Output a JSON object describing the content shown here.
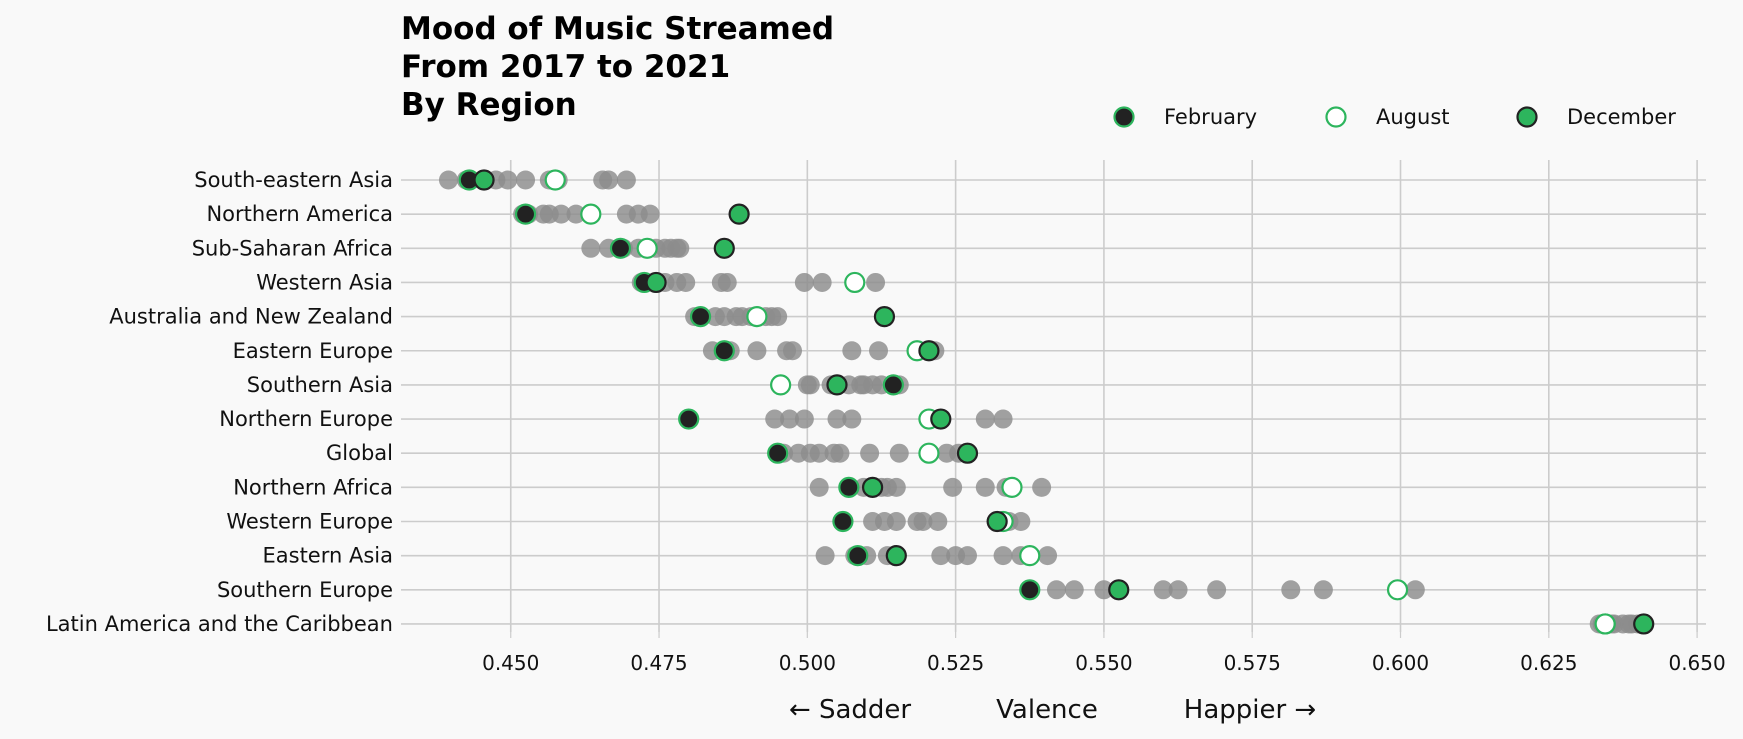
{
  "title": "Mood of Music Streamed\nFrom 2017 to 2021\nBy Region",
  "chart_data": {
    "type": "scatter",
    "title": "Mood of Music Streamed From 2017 to 2021 By Region",
    "xlabel": "Valence",
    "xlabel_left": "← Sadder",
    "xlabel_right": "Happier →",
    "xlim": [
      0.4315,
      0.6515
    ],
    "xticks": [
      0.45,
      0.475,
      0.5,
      0.525,
      0.55,
      0.575,
      0.6,
      0.625,
      0.65
    ],
    "xtick_labels": [
      "0.450",
      "0.475",
      "0.500",
      "0.525",
      "0.550",
      "0.575",
      "0.600",
      "0.625",
      "0.650"
    ],
    "grid": true,
    "legend_position": "top-right",
    "colors": {
      "accent": "#2db55d",
      "dark": "#222222",
      "other": "#8c8c8c",
      "background": "#f9f9f9"
    },
    "legend": [
      "February",
      "August",
      "December"
    ],
    "categories": [
      "South-eastern Asia",
      "Northern America",
      "Sub-Saharan Africa",
      "Western Asia",
      "Australia and New Zealand",
      "Eastern Europe",
      "Southern Asia",
      "Northern Europe",
      "Global",
      "Northern Africa",
      "Western Europe",
      "Eastern Asia",
      "Southern Europe",
      "Latin America and the Caribbean"
    ],
    "other_months": [
      [
        0.4395,
        0.4425,
        0.4455,
        0.4475,
        0.4495,
        0.4525,
        0.4565,
        0.458,
        0.4655,
        0.4665,
        0.4695
      ],
      [
        0.452,
        0.453,
        0.4555,
        0.4565,
        0.4585,
        0.461,
        0.4635,
        0.4695,
        0.4715,
        0.4735
      ],
      [
        0.4635,
        0.4665,
        0.469,
        0.4715,
        0.4745,
        0.476,
        0.477,
        0.478,
        0.4785
      ],
      [
        0.472,
        0.476,
        0.478,
        0.4795,
        0.4855,
        0.4865,
        0.4995,
        0.5025,
        0.5115
      ],
      [
        0.481,
        0.4845,
        0.486,
        0.488,
        0.489,
        0.4905,
        0.4915,
        0.493,
        0.494,
        0.495
      ],
      [
        0.484,
        0.486,
        0.487,
        0.4915,
        0.4965,
        0.4975,
        0.5075,
        0.512,
        0.5215
      ],
      [
        0.5,
        0.5005,
        0.504,
        0.505,
        0.507,
        0.509,
        0.5095,
        0.511,
        0.5125,
        0.5155
      ],
      [
        0.48,
        0.4945,
        0.497,
        0.4995,
        0.505,
        0.5075,
        0.522,
        0.53,
        0.533
      ],
      [
        0.496,
        0.4985,
        0.5005,
        0.502,
        0.5045,
        0.5055,
        0.5105,
        0.5155,
        0.5235,
        0.5255
      ],
      [
        0.502,
        0.507,
        0.5095,
        0.5125,
        0.5135,
        0.515,
        0.5245,
        0.53,
        0.5335,
        0.5395
      ],
      [
        0.506,
        0.511,
        0.513,
        0.515,
        0.5185,
        0.5195,
        0.522,
        0.532,
        0.534,
        0.536
      ],
      [
        0.503,
        0.508,
        0.51,
        0.5135,
        0.515,
        0.5225,
        0.525,
        0.527,
        0.533,
        0.536,
        0.5405
      ],
      [
        0.5375,
        0.542,
        0.545,
        0.55,
        0.5525,
        0.56,
        0.5625,
        0.569,
        0.5815,
        0.587,
        0.6025
      ],
      [
        0.6335,
        0.634,
        0.6355,
        0.636,
        0.6375,
        0.6385,
        0.639,
        0.64,
        0.6405,
        0.641
      ]
    ],
    "series": [
      {
        "name": "February",
        "values": [
          0.443,
          0.4525,
          0.4685,
          0.4725,
          0.482,
          0.486,
          0.5145,
          0.48,
          0.495,
          0.507,
          0.506,
          0.5085,
          0.5375,
          0.6345
        ]
      },
      {
        "name": "August",
        "values": [
          0.4575,
          0.4635,
          0.473,
          0.508,
          0.4915,
          0.5185,
          0.4955,
          0.5205,
          0.5205,
          0.5345,
          0.533,
          0.5375,
          0.5995,
          0.6345
        ]
      },
      {
        "name": "December",
        "values": [
          0.4455,
          0.4885,
          0.486,
          0.4745,
          0.513,
          0.5205,
          0.505,
          0.5225,
          0.527,
          0.511,
          0.532,
          0.515,
          0.5525,
          0.641
        ]
      }
    ]
  }
}
